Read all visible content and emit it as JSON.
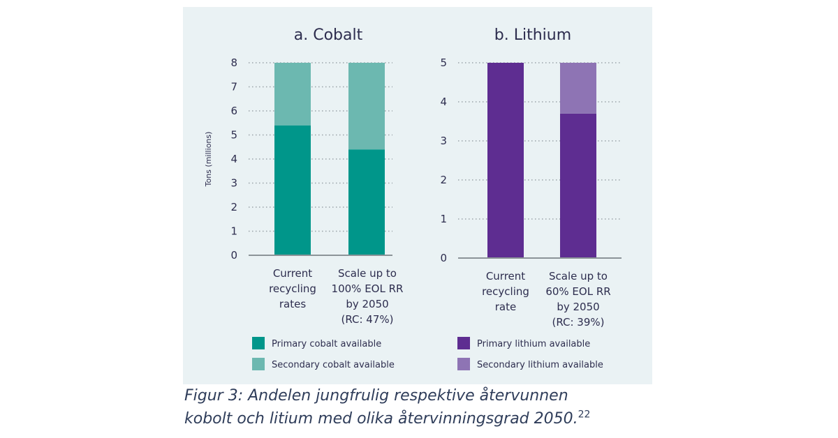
{
  "chart_data": [
    {
      "type": "bar",
      "stacked": true,
      "title": "a. Cobalt",
      "ylabel": "Tons (millions)",
      "ylim": [
        0,
        8
      ],
      "yticks": [
        "0",
        "1",
        "2",
        "3",
        "4",
        "5",
        "6",
        "7",
        "8"
      ],
      "grid": true,
      "categories": [
        [
          "Current",
          "recycling",
          "rates"
        ],
        [
          "Scale up to",
          "100% EOL RR",
          "by 2050",
          "(RC: 47%)"
        ]
      ],
      "series": [
        {
          "name": "Primary cobalt available",
          "values": [
            5.4,
            4.4
          ],
          "color": "#00968a"
        },
        {
          "name": "Secondary cobalt available",
          "values": [
            2.6,
            3.6
          ],
          "color": "#6cb8b0"
        }
      ]
    },
    {
      "type": "bar",
      "stacked": true,
      "title": "b. Lithium",
      "ylabel": "",
      "ylim": [
        0,
        5
      ],
      "yticks": [
        "0",
        "1",
        "2",
        "3",
        "4",
        "5"
      ],
      "grid": true,
      "categories": [
        [
          "Current",
          "recycling",
          "rate"
        ],
        [
          "Scale up to",
          "60% EOL RR",
          "by 2050",
          "(RC: 39%)"
        ]
      ],
      "series": [
        {
          "name": "Primary lithium available",
          "values": [
            5.0,
            3.7
          ],
          "color": "#5e2d91"
        },
        {
          "name": "Secondary lithium available",
          "values": [
            0.0,
            1.3
          ],
          "color": "#8e74b4"
        }
      ]
    }
  ],
  "caption": {
    "line1": "Figur 3: Andelen jungfrulig respektive återvunnen",
    "line2": "kobolt och litium med olika återvinningsgrad 2050.",
    "footnote": "22"
  }
}
